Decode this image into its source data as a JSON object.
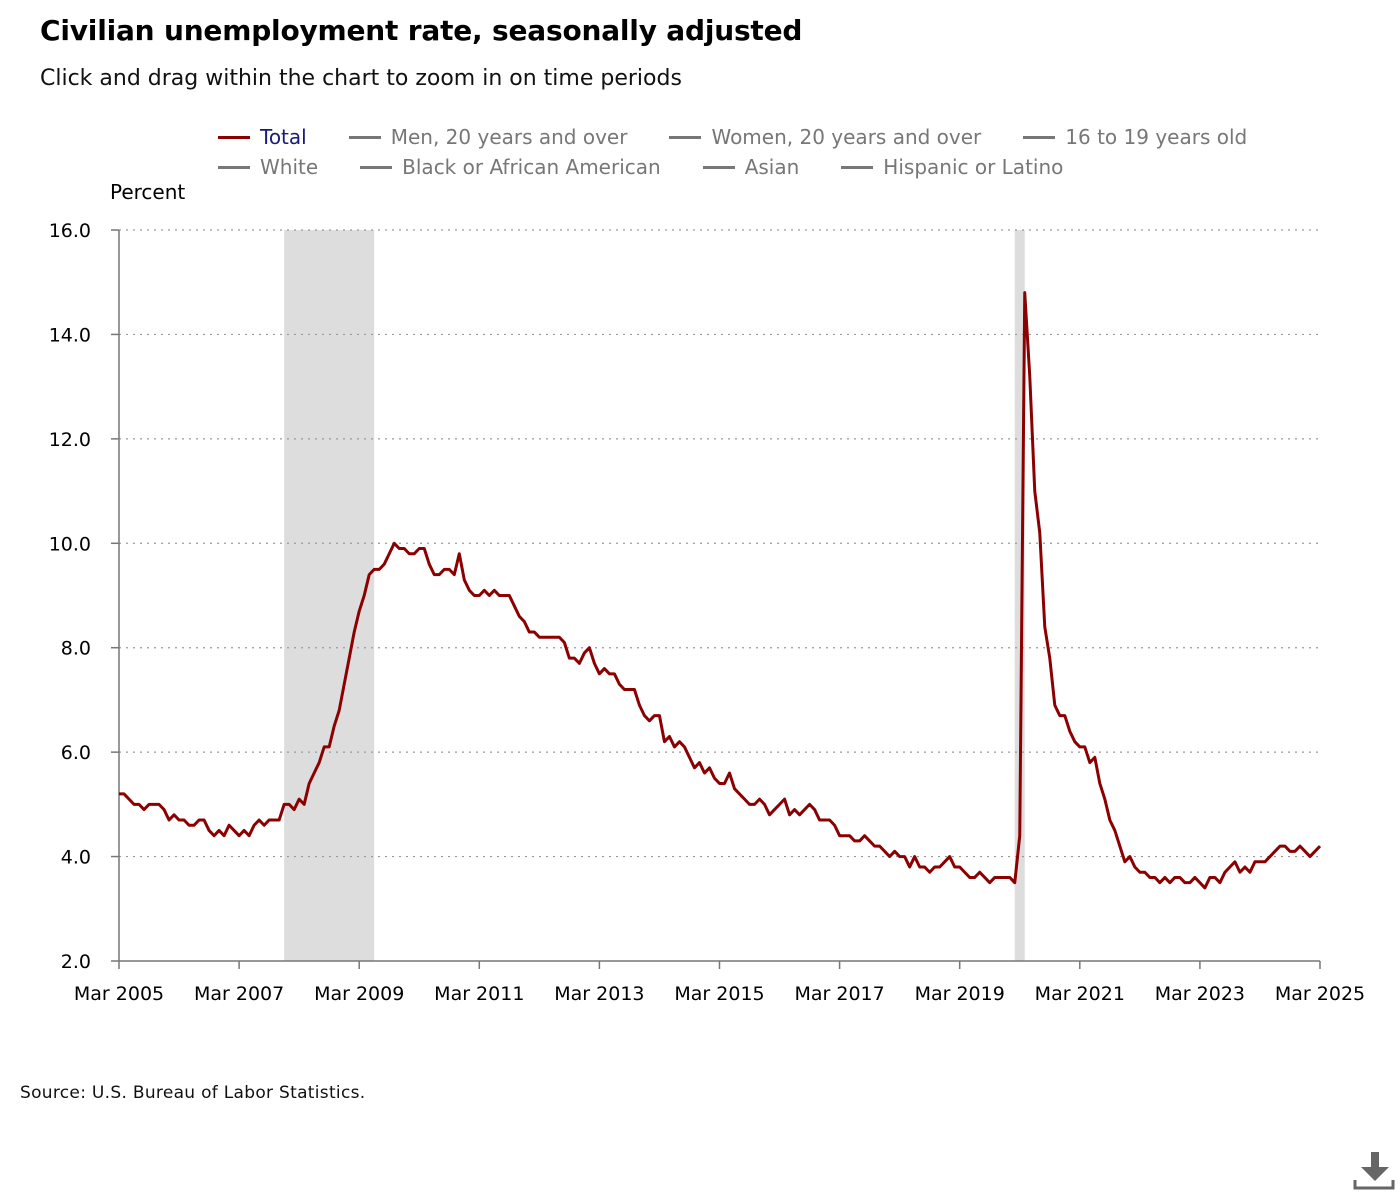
{
  "title": "Civilian unemployment rate, seasonally adjusted",
  "subtitle": "Click and drag within the chart to zoom in on time periods",
  "source": "Source: U.S. Bureau of Labor Statistics.",
  "legend": {
    "row1": [
      "Total",
      "Men, 20 years and over",
      "Women, 20 years and over",
      "16 to 19 years old"
    ],
    "row2": [
      "White",
      "Black or African American",
      "Asian",
      "Hispanic or Latino"
    ]
  },
  "icons": {
    "download": "download-icon"
  },
  "colors": {
    "series": "#8b0000",
    "recession": "#dddddd",
    "legend_active_text": "#1a1a7a",
    "legend_inactive": "#777777"
  },
  "chart_data": {
    "type": "line",
    "title": "Civilian unemployment rate, seasonally adjusted",
    "ylabel": "Percent",
    "xlabel": "",
    "ylim": [
      2.0,
      16.0
    ],
    "yticks": [
      "2.0",
      "4.0",
      "6.0",
      "8.0",
      "10.0",
      "12.0",
      "14.0",
      "16.0"
    ],
    "xticks": [
      "Mar 2005",
      "Mar 2007",
      "Mar 2009",
      "Mar 2011",
      "Mar 2013",
      "Mar 2015",
      "Mar 2017",
      "Mar 2019",
      "Mar 2021",
      "Mar 2023",
      "Mar 2025"
    ],
    "xlim": [
      "2005-03",
      "2025-03"
    ],
    "grid": "horizontal dotted",
    "legend_position": "top",
    "recessions": [
      [
        "2007-12",
        "2009-06"
      ],
      [
        "2020-02",
        "2020-04"
      ]
    ],
    "series": [
      {
        "name": "Total",
        "start": "2005-03",
        "frequency": "monthly",
        "values": [
          5.2,
          5.2,
          5.1,
          5.0,
          5.0,
          4.9,
          5.0,
          5.0,
          5.0,
          4.9,
          4.7,
          4.8,
          4.7,
          4.7,
          4.6,
          4.6,
          4.7,
          4.7,
          4.5,
          4.4,
          4.5,
          4.4,
          4.6,
          4.5,
          4.4,
          4.5,
          4.4,
          4.6,
          4.7,
          4.6,
          4.7,
          4.7,
          4.7,
          5.0,
          5.0,
          4.9,
          5.1,
          5.0,
          5.4,
          5.6,
          5.8,
          6.1,
          6.1,
          6.5,
          6.8,
          7.3,
          7.8,
          8.3,
          8.7,
          9.0,
          9.4,
          9.5,
          9.5,
          9.6,
          9.8,
          10.0,
          9.9,
          9.9,
          9.8,
          9.8,
          9.9,
          9.9,
          9.6,
          9.4,
          9.4,
          9.5,
          9.5,
          9.4,
          9.8,
          9.3,
          9.1,
          9.0,
          9.0,
          9.1,
          9.0,
          9.1,
          9.0,
          9.0,
          9.0,
          8.8,
          8.6,
          8.5,
          8.3,
          8.3,
          8.2,
          8.2,
          8.2,
          8.2,
          8.2,
          8.1,
          7.8,
          7.8,
          7.7,
          7.9,
          8.0,
          7.7,
          7.5,
          7.6,
          7.5,
          7.5,
          7.3,
          7.2,
          7.2,
          7.2,
          6.9,
          6.7,
          6.6,
          6.7,
          6.7,
          6.2,
          6.3,
          6.1,
          6.2,
          6.1,
          5.9,
          5.7,
          5.8,
          5.6,
          5.7,
          5.5,
          5.4,
          5.4,
          5.6,
          5.3,
          5.2,
          5.1,
          5.0,
          5.0,
          5.1,
          5.0,
          4.8,
          4.9,
          5.0,
          5.1,
          4.8,
          4.9,
          4.8,
          4.9,
          5.0,
          4.9,
          4.7,
          4.7,
          4.7,
          4.6,
          4.4,
          4.4,
          4.4,
          4.3,
          4.3,
          4.4,
          4.3,
          4.2,
          4.2,
          4.1,
          4.0,
          4.1,
          4.0,
          4.0,
          3.8,
          4.0,
          3.8,
          3.8,
          3.7,
          3.8,
          3.8,
          3.9,
          4.0,
          3.8,
          3.8,
          3.7,
          3.6,
          3.6,
          3.7,
          3.6,
          3.5,
          3.6,
          3.6,
          3.6,
          3.6,
          3.5,
          4.4,
          14.8,
          13.2,
          11.0,
          10.2,
          8.4,
          7.8,
          6.9,
          6.7,
          6.7,
          6.4,
          6.2,
          6.1,
          6.1,
          5.8,
          5.9,
          5.4,
          5.1,
          4.7,
          4.5,
          4.2,
          3.9,
          4.0,
          3.8,
          3.7,
          3.7,
          3.6,
          3.6,
          3.5,
          3.6,
          3.5,
          3.6,
          3.6,
          3.5,
          3.5,
          3.6,
          3.5,
          3.4,
          3.6,
          3.6,
          3.5,
          3.7,
          3.8,
          3.9,
          3.7,
          3.8,
          3.7,
          3.9,
          3.9,
          3.9,
          4.0,
          4.1,
          4.2,
          4.2,
          4.1,
          4.1,
          4.2,
          4.1,
          4.0,
          4.1,
          4.2
        ]
      }
    ]
  }
}
